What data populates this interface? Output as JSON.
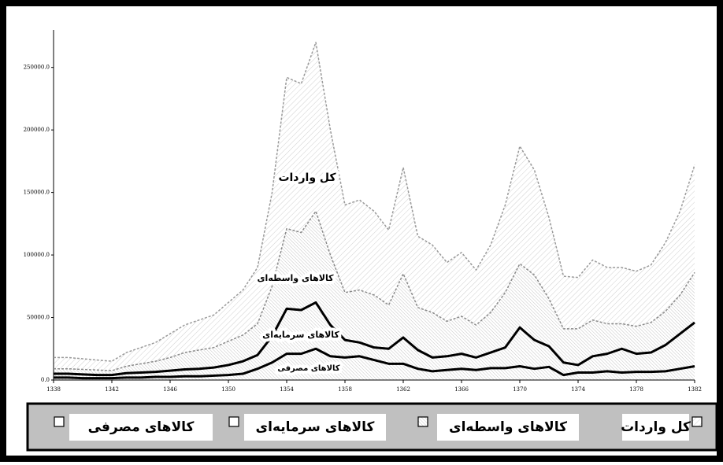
{
  "chart_data": {
    "type": "line",
    "x": [
      1338,
      1339,
      1340,
      1341,
      1342,
      1343,
      1344,
      1345,
      1346,
      1347,
      1348,
      1349,
      1350,
      1351,
      1352,
      1353,
      1354,
      1355,
      1356,
      1357,
      1358,
      1359,
      1360,
      1361,
      1362,
      1363,
      1364,
      1365,
      1366,
      1367,
      1368,
      1369,
      1370,
      1371,
      1372,
      1373,
      1374,
      1375,
      1376,
      1377,
      1378,
      1379,
      1380,
      1381,
      1382
    ],
    "series": [
      {
        "name": "کل واردات",
        "color": "#9a9a9a",
        "values": [
          18000,
          18000,
          17000,
          16000,
          15000,
          22000,
          26000,
          30000,
          37000,
          44000,
          48000,
          52000,
          62000,
          72000,
          90000,
          150000,
          242000,
          237000,
          270000,
          200000,
          140000,
          144000,
          135000,
          120000,
          170000,
          115000,
          108000,
          94000,
          102000,
          88000,
          108000,
          140000,
          187000,
          168000,
          130000,
          83000,
          82000,
          96000,
          90000,
          90000,
          87000,
          92000,
          110000,
          135000,
          172000
        ]
      },
      {
        "name": "کالاهای واسطه‌ای",
        "color": "#8a8a8a",
        "values": [
          9000,
          9000,
          8500,
          8000,
          7500,
          11000,
          13000,
          15000,
          18000,
          22000,
          24000,
          26000,
          31000,
          36000,
          45000,
          75000,
          121000,
          118000,
          135000,
          100000,
          70000,
          72000,
          68000,
          60000,
          85000,
          58000,
          54000,
          47000,
          51000,
          44000,
          54000,
          70000,
          93000,
          84000,
          65000,
          41000,
          41000,
          48000,
          45000,
          45000,
          43000,
          46000,
          55000,
          68000,
          86000
        ]
      },
      {
        "name": "کالاهای سرمایه‌ای",
        "color": "#000000",
        "values": [
          5000,
          5000,
          4500,
          4000,
          4000,
          5500,
          6000,
          6500,
          7500,
          8500,
          9000,
          10000,
          12000,
          15000,
          20000,
          35000,
          57000,
          56000,
          62000,
          44000,
          32000,
          30000,
          26000,
          25000,
          34000,
          24000,
          18000,
          19000,
          21000,
          18000,
          22000,
          26000,
          42000,
          32000,
          27000,
          14000,
          12000,
          19000,
          21000,
          25000,
          21000,
          22000,
          28000,
          37000,
          46000
        ]
      },
      {
        "name": "کالاهای مصرفی",
        "color": "#000000",
        "values": [
          2000,
          2000,
          1500,
          1500,
          1500,
          2000,
          2000,
          2500,
          2500,
          3000,
          3000,
          3500,
          4000,
          5000,
          9000,
          14000,
          21000,
          21000,
          25000,
          19000,
          18000,
          19000,
          16000,
          13000,
          13000,
          9000,
          7000,
          8000,
          9000,
          8000,
          9500,
          9500,
          11000,
          9000,
          10500,
          4000,
          6000,
          6000,
          7000,
          6000,
          6500,
          6500,
          7000,
          9000,
          11000
        ]
      }
    ],
    "xlim": [
      1338,
      1382
    ],
    "xticks": [
      1338,
      1342,
      1346,
      1350,
      1354,
      1358,
      1362,
      1366,
      1370,
      1374,
      1378,
      1382
    ],
    "ylim": [
      0,
      280000
    ],
    "yticks": [
      {
        "value": 0,
        "label": "0.0"
      },
      {
        "value": 50000,
        "label": "50000.0"
      },
      {
        "value": 100000,
        "label": "100000.0"
      },
      {
        "value": 150000,
        "label": "150000.0"
      },
      {
        "value": 200000,
        "label": "200000.0"
      },
      {
        "value": 250000,
        "label": "250000.0"
      }
    ]
  }
}
